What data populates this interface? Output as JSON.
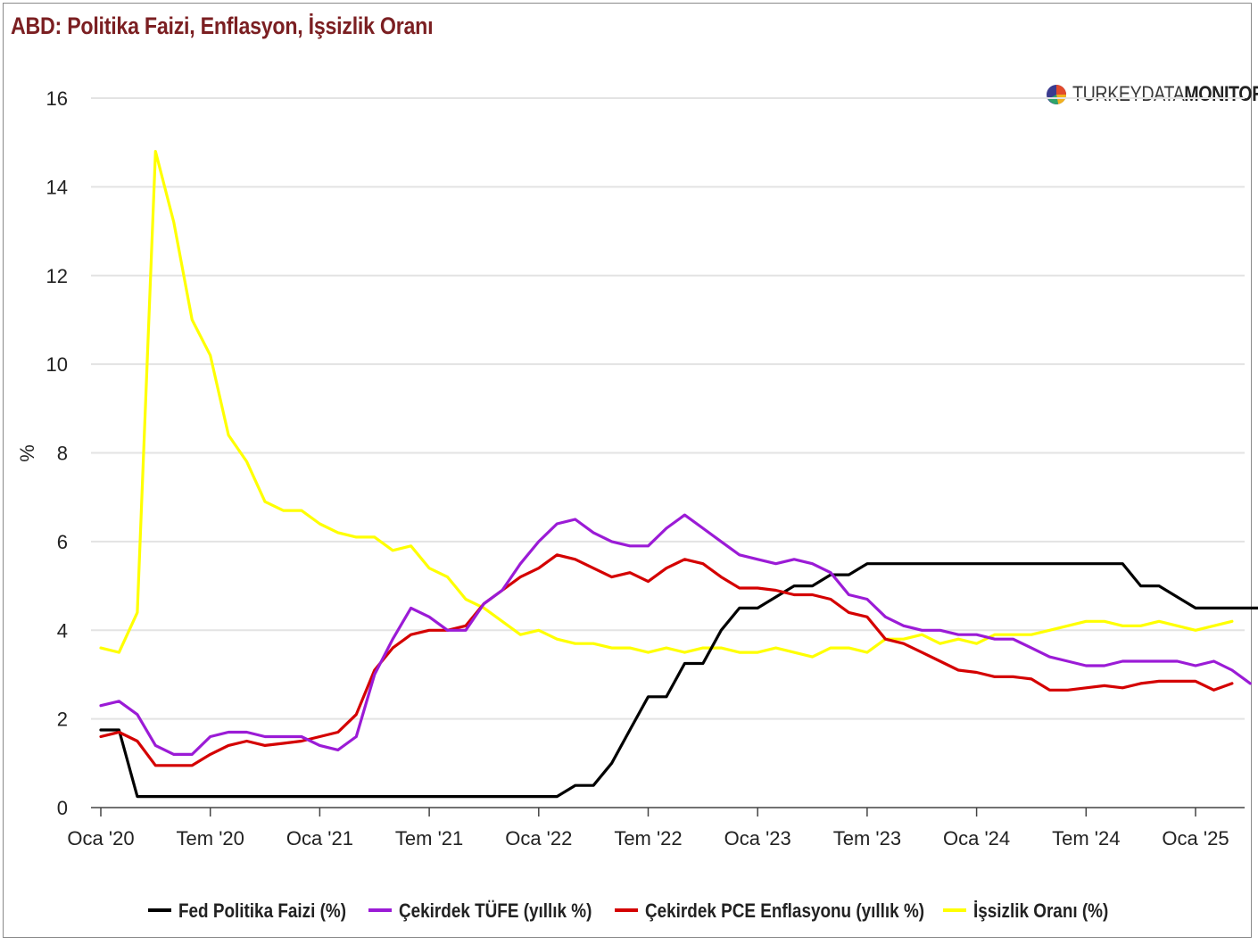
{
  "title": "ABD: Politika Faizi, Enflasyon, İşsizlik Oranı",
  "logo": {
    "icon": "pie-logo-icon",
    "text_light": "TURKEYDATA",
    "text_bold": "MONITOR"
  },
  "chart_data": {
    "type": "line",
    "ylabel": "%",
    "ylim": [
      0,
      16
    ],
    "yticks": [
      0,
      2,
      4,
      6,
      8,
      10,
      12,
      14,
      16
    ],
    "grid": true,
    "legend_position": "bottom",
    "x_start": "2020-01",
    "x_labels": [
      "Oca '20",
      "Tem '20",
      "Oca '21",
      "Tem '21",
      "Oca '22",
      "Tem '22",
      "Oca '23",
      "Tem '23",
      "Oca '24",
      "Tem '24",
      "Oca '25"
    ],
    "series": [
      {
        "name": "Fed Politika Faizi (%)",
        "color": "#000000",
        "values": [
          1.75,
          1.75,
          0.25,
          0.25,
          0.25,
          0.25,
          0.25,
          0.25,
          0.25,
          0.25,
          0.25,
          0.25,
          0.25,
          0.25,
          0.25,
          0.25,
          0.25,
          0.25,
          0.25,
          0.25,
          0.25,
          0.25,
          0.25,
          0.25,
          0.25,
          0.25,
          0.5,
          0.5,
          1.0,
          1.75,
          2.5,
          2.5,
          3.25,
          3.25,
          4.0,
          4.5,
          4.5,
          4.75,
          5.0,
          5.0,
          5.25,
          5.25,
          5.5,
          5.5,
          5.5,
          5.5,
          5.5,
          5.5,
          5.5,
          5.5,
          5.5,
          5.5,
          5.5,
          5.5,
          5.5,
          5.5,
          5.5,
          5.0,
          5.0,
          4.75,
          4.5,
          4.5,
          4.5,
          4.5,
          4.5
        ]
      },
      {
        "name": "Çekirdek TÜFE (yıllık %)",
        "color": "#9b1bd6",
        "values": [
          2.3,
          2.4,
          2.1,
          1.4,
          1.2,
          1.2,
          1.6,
          1.7,
          1.7,
          1.6,
          1.6,
          1.6,
          1.4,
          1.3,
          1.6,
          3.0,
          3.8,
          4.5,
          4.3,
          4.0,
          4.0,
          4.6,
          4.9,
          5.5,
          6.0,
          6.4,
          6.5,
          6.2,
          6.0,
          5.9,
          5.9,
          6.3,
          6.6,
          6.3,
          6.0,
          5.7,
          5.6,
          5.5,
          5.6,
          5.5,
          5.3,
          4.8,
          4.7,
          4.3,
          4.1,
          4.0,
          4.0,
          3.9,
          3.9,
          3.8,
          3.8,
          3.6,
          3.4,
          3.3,
          3.2,
          3.2,
          3.3,
          3.3,
          3.3,
          3.3,
          3.2,
          3.3,
          3.1,
          2.8
        ]
      },
      {
        "name": "Çekirdek PCE Enflasyonu (yıllık %)",
        "color": "#d40000",
        "values": [
          1.6,
          1.7,
          1.5,
          0.95,
          0.95,
          0.95,
          1.2,
          1.4,
          1.5,
          1.4,
          1.45,
          1.5,
          1.6,
          1.7,
          2.1,
          3.1,
          3.6,
          3.9,
          4.0,
          4.0,
          4.1,
          4.6,
          4.9,
          5.2,
          5.4,
          5.7,
          5.6,
          5.4,
          5.2,
          5.3,
          5.1,
          5.4,
          5.6,
          5.5,
          5.2,
          4.95,
          4.95,
          4.9,
          4.8,
          4.8,
          4.7,
          4.4,
          4.3,
          3.8,
          3.7,
          3.5,
          3.3,
          3.1,
          3.05,
          2.95,
          2.95,
          2.9,
          2.65,
          2.65,
          2.7,
          2.75,
          2.7,
          2.8,
          2.85,
          2.85,
          2.85,
          2.65,
          2.8
        ]
      },
      {
        "name": "İşsizlik Oranı (%)",
        "color": "#ffff00",
        "values": [
          3.6,
          3.5,
          4.4,
          14.8,
          13.2,
          11.0,
          10.2,
          8.4,
          7.8,
          6.9,
          6.7,
          6.7,
          6.4,
          6.2,
          6.1,
          6.1,
          5.8,
          5.9,
          5.4,
          5.2,
          4.7,
          4.5,
          4.2,
          3.9,
          4.0,
          3.8,
          3.7,
          3.7,
          3.6,
          3.6,
          3.5,
          3.6,
          3.5,
          3.6,
          3.6,
          3.5,
          3.5,
          3.6,
          3.5,
          3.4,
          3.6,
          3.6,
          3.5,
          3.8,
          3.8,
          3.9,
          3.7,
          3.8,
          3.7,
          3.9,
          3.9,
          3.9,
          4.0,
          4.1,
          4.2,
          4.2,
          4.1,
          4.1,
          4.2,
          4.1,
          4.0,
          4.1,
          4.2
        ]
      }
    ]
  }
}
